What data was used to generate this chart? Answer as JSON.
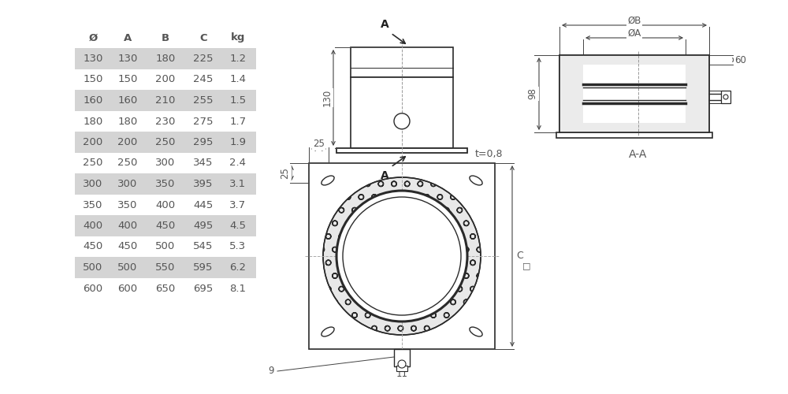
{
  "table_headers": [
    "Ø",
    "A",
    "B",
    "C",
    "kg"
  ],
  "table_rows": [
    [
      130,
      130,
      180,
      225,
      1.2
    ],
    [
      150,
      150,
      200,
      245,
      1.4
    ],
    [
      160,
      160,
      210,
      255,
      1.5
    ],
    [
      180,
      180,
      230,
      275,
      1.7
    ],
    [
      200,
      200,
      250,
      295,
      1.9
    ],
    [
      250,
      250,
      300,
      345,
      2.4
    ],
    [
      300,
      300,
      350,
      395,
      3.1
    ],
    [
      350,
      350,
      400,
      445,
      3.7
    ],
    [
      400,
      400,
      450,
      495,
      4.5
    ],
    [
      450,
      450,
      500,
      545,
      5.3
    ],
    [
      500,
      500,
      550,
      595,
      6.2
    ],
    [
      600,
      600,
      650,
      695,
      8.1
    ]
  ],
  "shaded_rows": [
    0,
    2,
    4,
    6,
    8,
    10
  ],
  "bg_color": "#ffffff",
  "row_shade_color": "#d4d4d4",
  "text_color": "#555555",
  "line_color": "#2a2a2a",
  "dim_color": "#444444"
}
